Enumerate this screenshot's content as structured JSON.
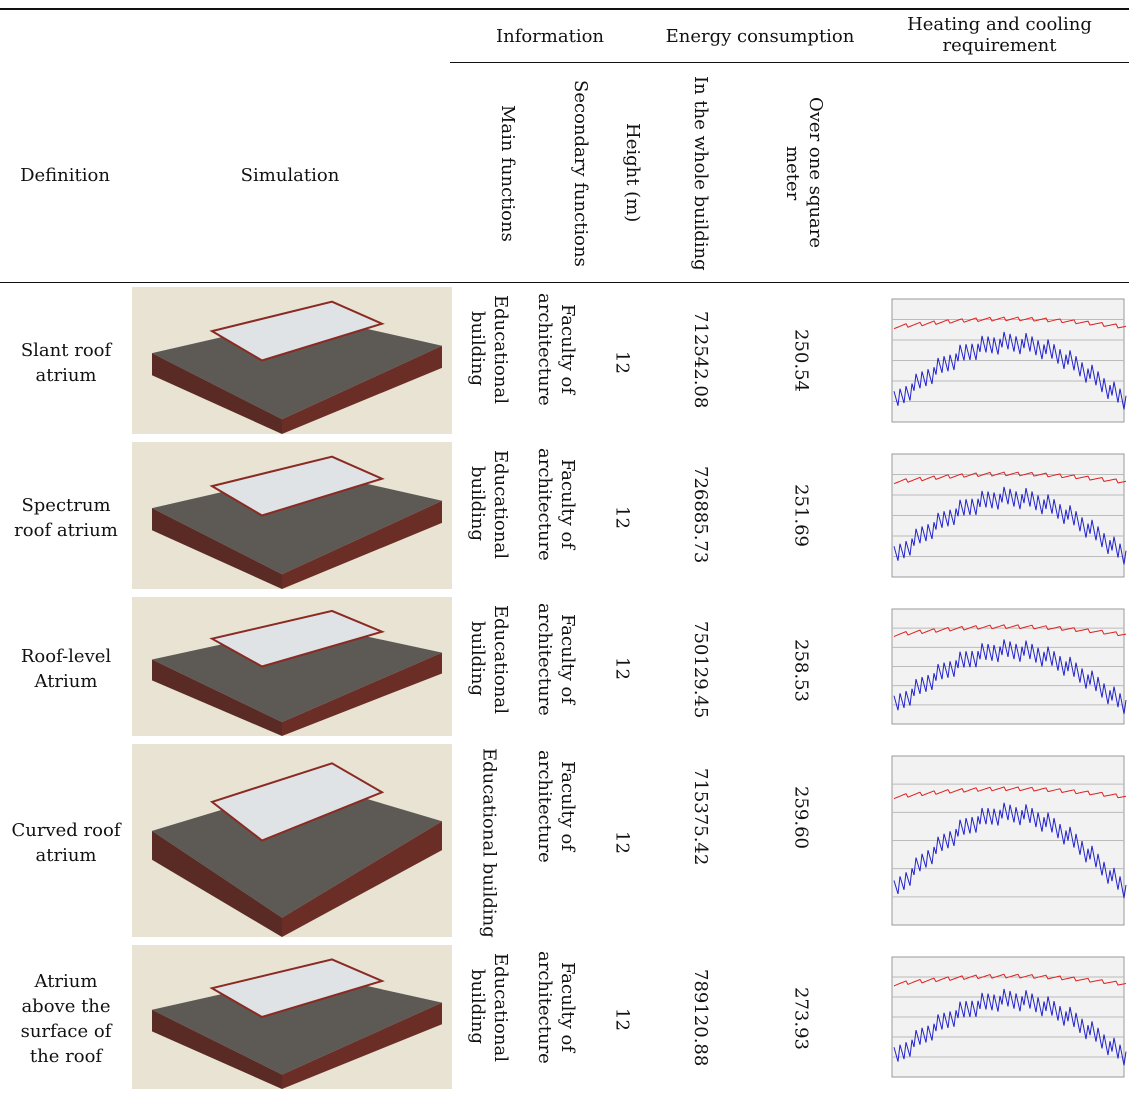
{
  "header": {
    "groups": [
      "Information",
      "Energy consumption",
      "Heating and cooling requirement"
    ],
    "columns": [
      "Definition",
      "Simulation",
      "Main functions",
      "Secondary functions",
      "Height (m)",
      "In the whole building",
      "Over one square meter"
    ]
  },
  "rows": [
    {
      "definition": "Slant roof atrium",
      "main_function": "Educational building",
      "secondary_function": "Faculty of architecture",
      "height": "12",
      "whole_building": "712542.08",
      "per_square_meter": "250.54"
    },
    {
      "definition": "Spectrum roof atrium",
      "main_function": "Educational building",
      "secondary_function": "Faculty of architecture",
      "height": "12",
      "whole_building": "726885.73",
      "per_square_meter": "251.69"
    },
    {
      "definition": "Roof-level Atrium",
      "main_function": "Educational building",
      "secondary_function": "Faculty of architecture",
      "height": "12",
      "whole_building": "750129.45",
      "per_square_meter": "258.53"
    },
    {
      "definition": "Curved roof atrium",
      "main_function": "Educational building",
      "secondary_function": "Faculty of architecture",
      "height": "12",
      "whole_building": "715375.42",
      "per_square_meter": "259.60"
    },
    {
      "definition": "Atrium above the surface of the roof",
      "main_function": "Educational building",
      "secondary_function": "Faculty of architecture",
      "height": "12",
      "whole_building": "789120.88",
      "per_square_meter": "273.93"
    }
  ]
}
